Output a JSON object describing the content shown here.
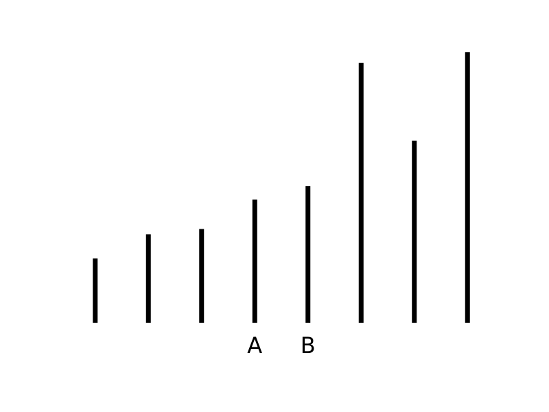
{
  "chart_data": {
    "type": "bar",
    "title": "",
    "xlabel": "",
    "ylabel": "",
    "ylim": [
      0,
      100
    ],
    "grid": false,
    "axes_visible": false,
    "bar_color": "#000000",
    "categories": [
      "",
      "",
      "",
      "A",
      "B",
      "",
      "",
      ""
    ],
    "values": [
      24,
      33,
      35,
      46,
      51,
      97,
      68,
      101
    ]
  }
}
